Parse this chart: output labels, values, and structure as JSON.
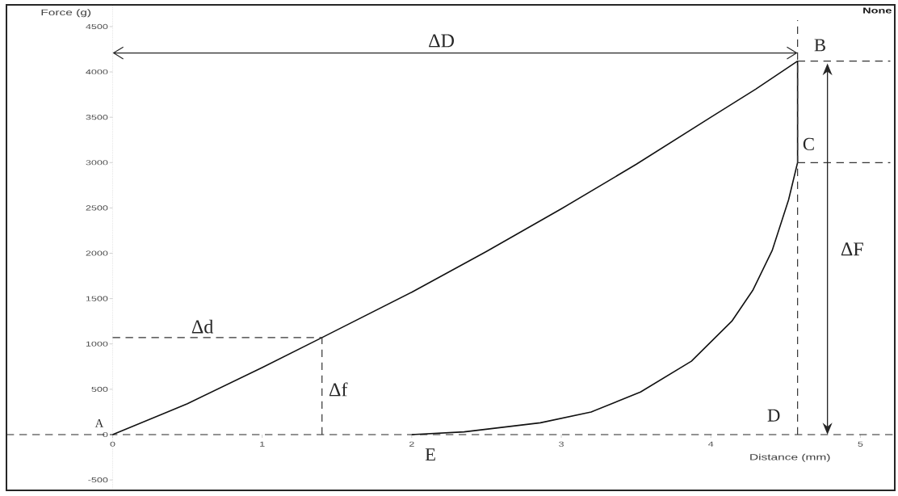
{
  "chart_data": {
    "type": "line",
    "xlabel": "Distance (mm)",
    "ylabel": "Force (g)",
    "xlim": [
      -0.71,
      5.23
    ],
    "ylim": [
      -615,
      4740
    ],
    "xticks": [
      0,
      1,
      2,
      3,
      4,
      5
    ],
    "yticks": [
      -500,
      0,
      500,
      1000,
      1500,
      2000,
      2500,
      3000,
      3500,
      4000,
      4500
    ],
    "series": [
      {
        "type": "line",
        "color": "#111111",
        "line_style": "solid",
        "x": [
          0,
          0.5,
          1,
          1.4,
          2,
          2.5,
          3,
          3.5,
          4,
          4.3,
          4.58,
          4.58,
          4.52,
          4.41,
          4.28,
          4.14,
          3.87,
          3.53,
          3.2,
          2.86,
          2.35,
          2.0
        ],
        "values": [
          0,
          340,
          740,
          1070,
          1570,
          2020,
          2490,
          2980,
          3500,
          3810,
          4120,
          3000,
          2590,
          2030,
          1590,
          1250,
          810,
          470,
          250,
          130,
          30,
          0
        ]
      },
      {
        "type": "line",
        "color": "#333333",
        "line_style": "dashed",
        "x": [
          0,
          1.4
        ],
        "values": [
          1070,
          1070
        ]
      },
      {
        "type": "line",
        "color": "#333333",
        "line_style": "dashed",
        "x": [
          1.4,
          1.4
        ],
        "values": [
          0,
          1070
        ]
      },
      {
        "type": "line",
        "color": "#333333",
        "line_style": "dashed",
        "x": [
          4.58,
          4.58
        ],
        "values": [
          0,
          4570
        ]
      },
      {
        "type": "line",
        "color": "#333333",
        "line_style": "dashed",
        "x": [
          4.58,
          5.2
        ],
        "values": [
          4120,
          4120
        ]
      },
      {
        "type": "line",
        "color": "#333333",
        "line_style": "dashed",
        "x": [
          4.58,
          5.2
        ],
        "values": [
          3000,
          3000
        ]
      }
    ],
    "ref_lines": [
      {
        "axis": "y",
        "value": 0,
        "color": "#262626",
        "line_style": "dashed"
      }
    ],
    "annotations": [
      {
        "text": "A",
        "x": 0,
        "y": 0
      },
      {
        "text": "B",
        "x": 4.58,
        "y": 4120
      },
      {
        "text": "C",
        "x": 4.58,
        "y": 3000
      },
      {
        "text": "D",
        "x": 4.58,
        "y": 0
      },
      {
        "text": "E",
        "x": 2,
        "y": 0
      },
      {
        "text": "Δd",
        "x": 0.6,
        "y": 1070
      },
      {
        "text": "Δf",
        "x": 1.4,
        "y": 500
      },
      "ΔD",
      "ΔF",
      "None"
    ]
  }
}
